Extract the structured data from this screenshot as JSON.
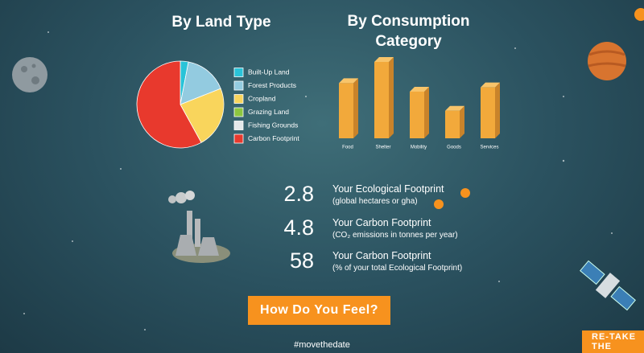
{
  "chart_data": [
    {
      "type": "pie",
      "title": "By Land Type",
      "categories": [
        "Built-Up Land",
        "Forest Products",
        "Cropland",
        "Grazing Land",
        "Fishing Grounds",
        "Carbon Footprint"
      ],
      "values": [
        3,
        16,
        23,
        0,
        0,
        58
      ],
      "colors": [
        "#2ac3d8",
        "#93cbe0",
        "#f9d55c",
        "#8cc63f",
        "#e4e8ea",
        "#e8392d"
      ]
    },
    {
      "type": "bar",
      "title": "By Consumption Category",
      "categories": [
        "Food",
        "Shelter",
        "Mobility",
        "Goods",
        "Services"
      ],
      "values": [
        26,
        36,
        22,
        13,
        24
      ],
      "color": "#f2a93b"
    }
  ],
  "stats": [
    {
      "value": 2.8,
      "label": "Your Ecological Footprint",
      "note": "(global hectares or gha)"
    },
    {
      "value": 4.8,
      "label": "Your Carbon Footprint",
      "note": "(CO₂ emissions in tonnes per year)"
    },
    {
      "value": 58,
      "label": "Your Carbon Footprint",
      "note": "(% of your total Ecological Footprint)"
    }
  ],
  "button": "How Do You Feel?",
  "hashtag": "#movethedate",
  "retake": "RE-TAKE THE"
}
